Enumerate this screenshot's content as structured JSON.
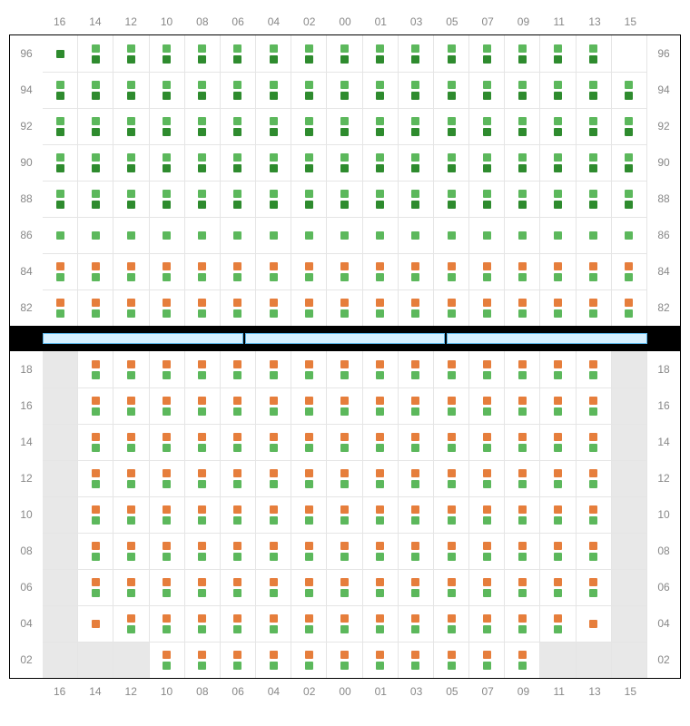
{
  "colors": {
    "green": "#5cb85c",
    "darkgreen": "#2e8b2e",
    "orange": "#e67e3c",
    "grid": "#e5e5e5",
    "label": "#888888",
    "border": "#000000",
    "grey_cell": "#e8e8e8",
    "divider_bar_fill": "#d6f0ff",
    "divider_bar_border": "#5bb5e8"
  },
  "columns": [
    "16",
    "14",
    "12",
    "10",
    "08",
    "06",
    "04",
    "02",
    "00",
    "01",
    "03",
    "05",
    "07",
    "09",
    "11",
    "13",
    "15"
  ],
  "top": {
    "rows": [
      "96",
      "94",
      "92",
      "90",
      "88",
      "86",
      "84",
      "82"
    ],
    "cells": {
      "96": {
        "pattern": "D",
        "top_missing": [
          0,
          16
        ],
        "bot_missing": [
          16
        ]
      },
      "94": {
        "pattern": "D"
      },
      "92": {
        "pattern": "D"
      },
      "90": {
        "pattern": "D"
      },
      "88": {
        "pattern": "D"
      },
      "86": {
        "pattern": "S_green"
      },
      "84": {
        "pattern": "OG"
      },
      "82": {
        "pattern": "OG"
      }
    }
  },
  "bottom": {
    "rows": [
      "18",
      "16",
      "14",
      "12",
      "10",
      "08",
      "06",
      "04",
      "02"
    ],
    "grey_cols_by_row": {
      "18": [
        0,
        16
      ],
      "16": [
        0,
        16
      ],
      "14": [
        0,
        16
      ],
      "12": [
        0,
        16
      ],
      "10": [
        0,
        16
      ],
      "08": [
        0,
        16
      ],
      "06": [
        0,
        16
      ],
      "04": [
        0,
        16
      ],
      "02": [
        0,
        1,
        2,
        14,
        15,
        16
      ]
    },
    "cells": {
      "18": {
        "pattern": "OG",
        "present": [
          1,
          2,
          3,
          4,
          5,
          6,
          7,
          8,
          9,
          10,
          11,
          12,
          13,
          14,
          15
        ]
      },
      "16": {
        "pattern": "OG",
        "present": [
          1,
          2,
          3,
          4,
          5,
          6,
          7,
          8,
          9,
          10,
          11,
          12,
          13,
          14,
          15
        ]
      },
      "14": {
        "pattern": "OG",
        "present": [
          1,
          2,
          3,
          4,
          5,
          6,
          7,
          8,
          9,
          10,
          11,
          12,
          13,
          14,
          15
        ]
      },
      "12": {
        "pattern": "OG",
        "present": [
          1,
          2,
          3,
          4,
          5,
          6,
          7,
          8,
          9,
          10,
          11,
          12,
          13,
          14,
          15
        ]
      },
      "10": {
        "pattern": "OG",
        "present": [
          1,
          2,
          3,
          4,
          5,
          6,
          7,
          8,
          9,
          10,
          11,
          12,
          13,
          14,
          15
        ]
      },
      "08": {
        "pattern": "OG",
        "present": [
          1,
          2,
          3,
          4,
          5,
          6,
          7,
          8,
          9,
          10,
          11,
          12,
          13,
          14,
          15
        ]
      },
      "06": {
        "pattern": "OG",
        "present": [
          1,
          2,
          3,
          4,
          5,
          6,
          7,
          8,
          9,
          10,
          11,
          12,
          13,
          14,
          15
        ]
      },
      "04": {
        "pattern": "OG",
        "present": [
          2,
          3,
          4,
          5,
          6,
          7,
          8,
          9,
          10,
          11,
          12,
          13,
          14
        ],
        "top_only": [
          1,
          15
        ]
      },
      "02": {
        "pattern": "OG",
        "present": [
          3,
          4,
          5,
          6,
          7,
          8,
          9,
          10,
          11,
          12,
          13
        ]
      }
    }
  }
}
